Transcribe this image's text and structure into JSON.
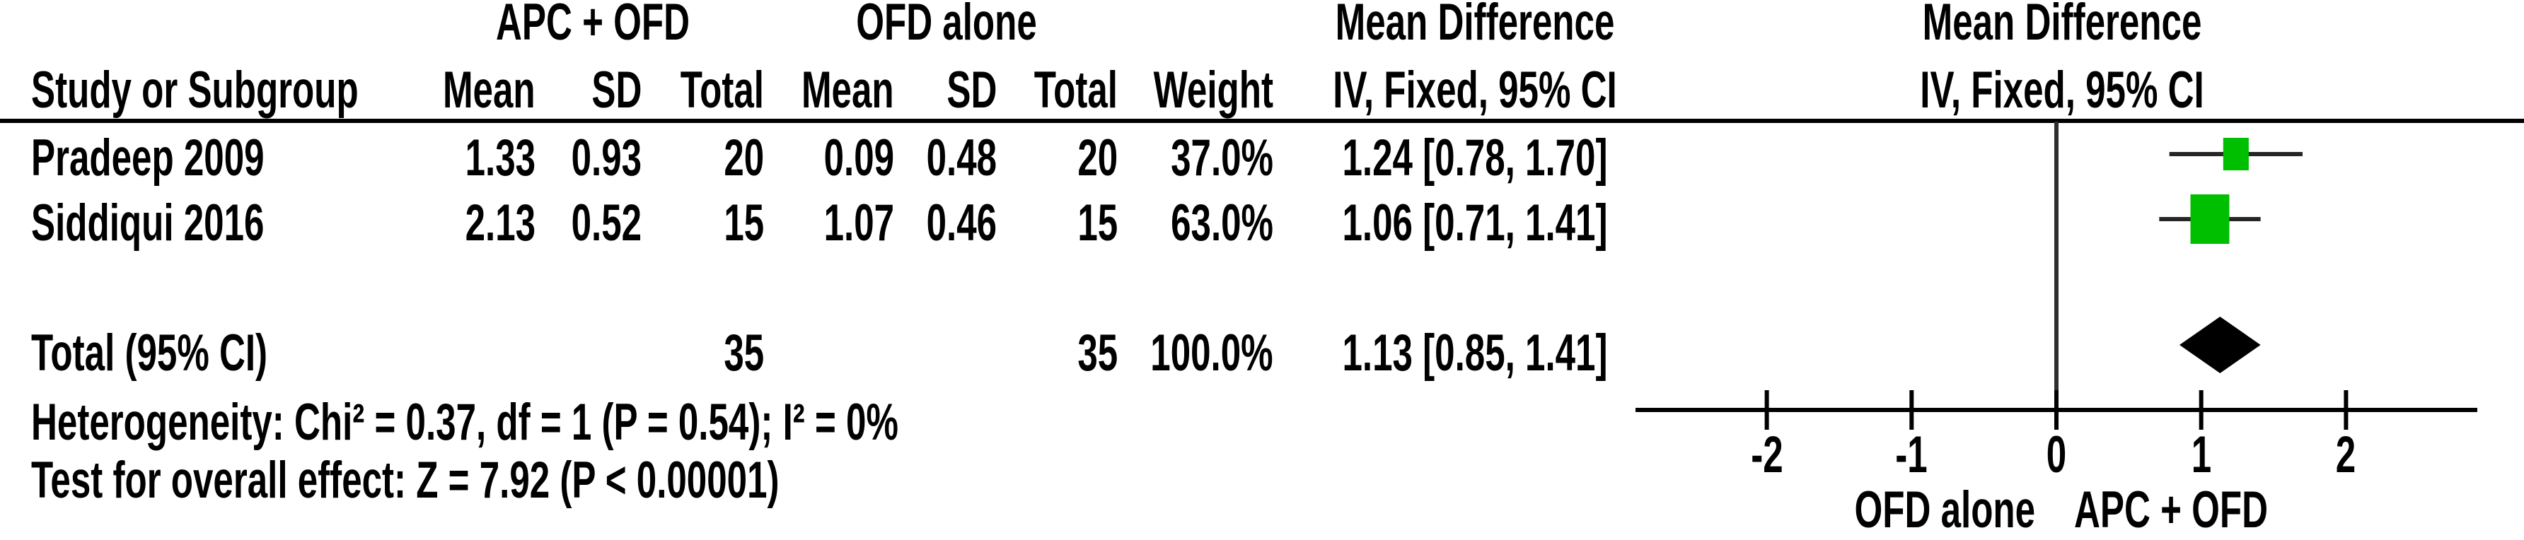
{
  "table": {
    "group1_label": "APC + OFD",
    "group2_label": "OFD alone",
    "effect_label": "Mean Difference",
    "effect_sub_label": "IV, Fixed, 95% CI",
    "columns": {
      "study": "Study or Subgroup",
      "mean": "Mean",
      "sd": "SD",
      "total": "Total",
      "weight": "Weight"
    },
    "rows": [
      {
        "study": "Pradeep 2009",
        "mean1": "1.33",
        "sd1": "0.93",
        "total1": "20",
        "mean2": "0.09",
        "sd2": "0.48",
        "total2": "20",
        "weight": "37.0%",
        "ci": "1.24 [0.78, 1.70]"
      },
      {
        "study": "Siddiqui 2016",
        "mean1": "2.13",
        "sd1": "0.52",
        "total1": "15",
        "mean2": "1.07",
        "sd2": "0.46",
        "total2": "15",
        "weight": "63.0%",
        "ci": "1.06 [0.71, 1.41]"
      }
    ],
    "total_row": {
      "label": "Total (95% CI)",
      "total1": "35",
      "total2": "35",
      "weight": "100.0%",
      "ci": "1.13 [0.85, 1.41]"
    },
    "heterogeneity": "Heterogeneity: Chi² = 0.37, df = 1 (P = 0.54); I² = 0%",
    "overall_effect": "Test for overall effect: Z = 7.92 (P < 0.00001)"
  },
  "chart_data": {
    "type": "forest",
    "effect_measure": "Mean Difference, IV, Fixed, 95% CI",
    "xlim": [
      -2.9,
      2.9
    ],
    "ticks": [
      -2,
      -1,
      0,
      1,
      2
    ],
    "favours_left": "OFD alone",
    "favours_right": "APC + OFD",
    "studies": [
      {
        "name": "Pradeep 2009",
        "md": 1.24,
        "ci_low": 0.78,
        "ci_high": 1.7,
        "weight_pct": 37.0
      },
      {
        "name": "Siddiqui 2016",
        "md": 1.06,
        "ci_low": 0.71,
        "ci_high": 1.41,
        "weight_pct": 63.0
      }
    ],
    "total": {
      "md": 1.13,
      "ci_low": 0.85,
      "ci_high": 1.41,
      "weight_pct": 100.0
    },
    "marker_color": "#00BE00",
    "ci_line_color": "#262626",
    "diamond_color": "#000000",
    "axis_color": "#000000"
  }
}
